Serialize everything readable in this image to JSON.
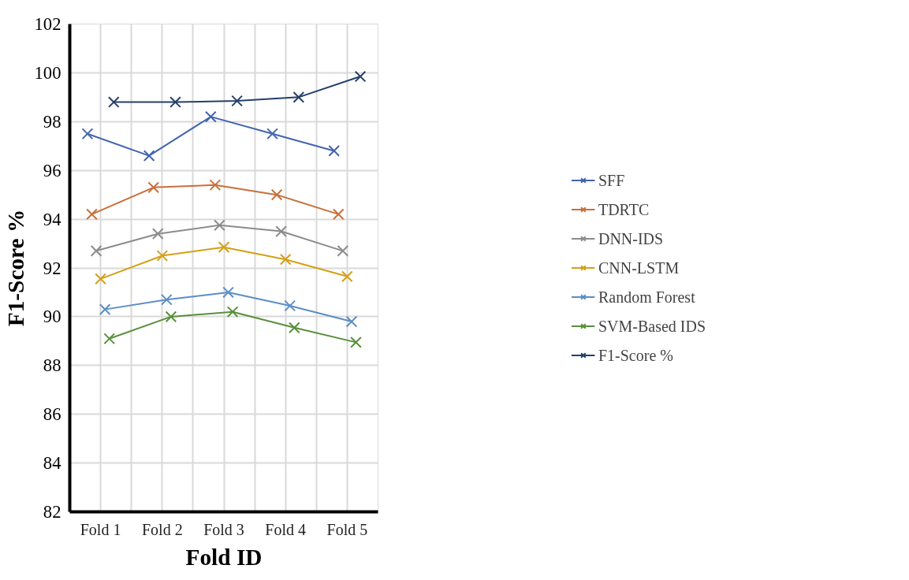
{
  "chart_data": {
    "type": "line",
    "xlabel": "Fold ID",
    "ylabel": "F1-Score %",
    "categories": [
      "Fold 1",
      "Fold 2",
      "Fold 3",
      "Fold 4",
      "Fold 5"
    ],
    "series": [
      {
        "name": "SFF",
        "color": "#4264b0",
        "values": [
          97.5,
          96.6,
          98.2,
          97.5,
          96.8
        ]
      },
      {
        "name": "TDRTC",
        "color": "#c8703a",
        "values": [
          94.2,
          95.3,
          95.4,
          95.0,
          94.2
        ]
      },
      {
        "name": "DNN-IDS",
        "color": "#8c8c8c",
        "values": [
          92.7,
          93.4,
          93.75,
          93.5,
          92.7
        ]
      },
      {
        "name": "CNN-LSTM",
        "color": "#d4a017",
        "values": [
          91.55,
          92.5,
          92.85,
          92.35,
          91.65
        ]
      },
      {
        "name": "Random Forest",
        "color": "#5b8ec4",
        "values": [
          90.3,
          90.7,
          91.0,
          90.45,
          89.8
        ]
      },
      {
        "name": "SVM-Based IDS",
        "color": "#5a8f3c",
        "values": [
          89.1,
          90.0,
          90.2,
          89.55,
          88.95
        ]
      },
      {
        "name": "F1-Score %",
        "color": "#243f6b",
        "values": [
          98.8,
          98.8,
          98.85,
          99.0,
          99.85
        ]
      }
    ],
    "ylim": [
      82,
      102
    ],
    "yticks": [
      82,
      84,
      86,
      88,
      90,
      92,
      94,
      96,
      98,
      100,
      102
    ],
    "grid": true,
    "legend": "right",
    "marker": "cross",
    "line_style": "solid"
  }
}
